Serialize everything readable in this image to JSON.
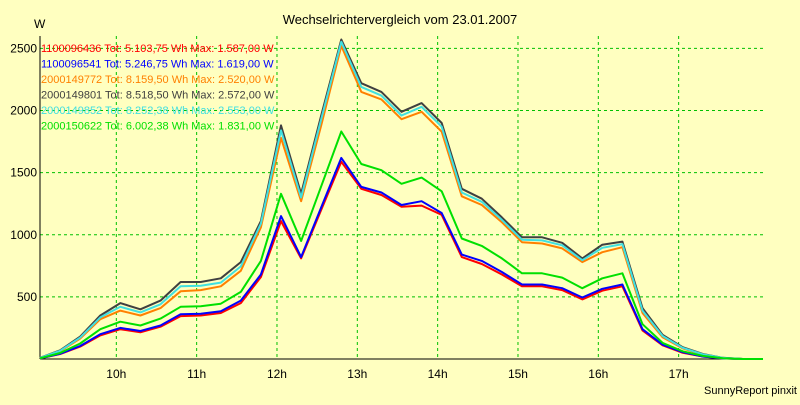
{
  "chart_data": {
    "type": "line",
    "title": "Wechselrichtervergleich vom 23.01.2007",
    "ylabel": "W",
    "xlabel": "",
    "footer": "SunnyReport pinxit",
    "ylim": [
      0,
      2600
    ],
    "xlim": [
      9.05,
      18.05
    ],
    "yticks": [
      500,
      1000,
      1500,
      2000,
      2500
    ],
    "xticks": [
      {
        "v": 10,
        "label": "10h"
      },
      {
        "v": 11,
        "label": "11h"
      },
      {
        "v": 12,
        "label": "12h"
      },
      {
        "v": 13,
        "label": "13h"
      },
      {
        "v": 14,
        "label": "14h"
      },
      {
        "v": 15,
        "label": "15h"
      },
      {
        "v": 16,
        "label": "16h"
      },
      {
        "v": 17,
        "label": "17h"
      }
    ],
    "grid": true,
    "legend_position": "top-left",
    "x": [
      9.05,
      9.3,
      9.55,
      9.8,
      10.05,
      10.3,
      10.55,
      10.8,
      11.05,
      11.3,
      11.55,
      11.8,
      12.05,
      12.3,
      12.55,
      12.8,
      13.05,
      13.3,
      13.55,
      13.8,
      14.05,
      14.3,
      14.55,
      14.8,
      15.05,
      15.3,
      15.55,
      15.8,
      16.05,
      16.3,
      16.55,
      16.8,
      17.05,
      17.3,
      17.55,
      17.8,
      18.05
    ],
    "series": [
      {
        "name": "1100096436",
        "label": "1100096436 Tot: 5.103,75 Wh Max: 1.587,00 W",
        "color": "#ff0000",
        "values": [
          5,
          40,
          100,
          190,
          240,
          215,
          260,
          345,
          350,
          370,
          450,
          660,
          1110,
          810,
          1200,
          1587,
          1370,
          1320,
          1225,
          1235,
          1160,
          820,
          765,
          680,
          585,
          585,
          555,
          480,
          550,
          585,
          230,
          110,
          50,
          20,
          5,
          0,
          0
        ]
      },
      {
        "name": "1100096541",
        "label": "1100096541 Tot: 5.246,75 Wh Max: 1.619,00 W",
        "color": "#0000ff",
        "values": [
          5,
          42,
          105,
          200,
          250,
          225,
          270,
          360,
          365,
          385,
          470,
          680,
          1150,
          820,
          1220,
          1619,
          1385,
          1340,
          1240,
          1270,
          1175,
          840,
          790,
          700,
          600,
          600,
          570,
          495,
          565,
          600,
          240,
          115,
          55,
          20,
          5,
          0,
          0
        ]
      },
      {
        "name": "2000149772",
        "label": "2000149772 Tot: 8.159,50 Wh Max: 2.520,00 W",
        "color": "#ff8000",
        "values": [
          8,
          62,
          165,
          320,
          390,
          350,
          410,
          545,
          555,
          585,
          710,
          1060,
          1780,
          1270,
          1880,
          2520,
          2150,
          2090,
          1930,
          1990,
          1830,
          1310,
          1240,
          1100,
          940,
          930,
          890,
          780,
          860,
          900,
          370,
          175,
          85,
          35,
          8,
          0,
          0
        ]
      },
      {
        "name": "2000149801",
        "label": "2000149801 Tot: 8.518,50 Wh Max: 2.572,00 W",
        "color": "#404040",
        "values": [
          10,
          70,
          180,
          350,
          450,
          400,
          470,
          620,
          620,
          650,
          780,
          1110,
          1880,
          1330,
          1960,
          2572,
          2220,
          2150,
          1990,
          2060,
          1900,
          1370,
          1290,
          1140,
          980,
          980,
          935,
          810,
          920,
          945,
          410,
          195,
          95,
          40,
          10,
          0,
          0
        ]
      },
      {
        "name": "2000149852",
        "label": "2000149852 Tot: 8.252,38 Wh Max: 2.553,00 W",
        "color": "#40e0e0",
        "values": [
          9,
          66,
          172,
          335,
          420,
          375,
          440,
          585,
          590,
          615,
          745,
          1090,
          1840,
          1300,
          1930,
          2553,
          2190,
          2120,
          1960,
          2030,
          1870,
          1340,
          1265,
          1120,
          960,
          955,
          915,
          795,
          895,
          925,
          390,
          185,
          90,
          38,
          9,
          0,
          0
        ]
      },
      {
        "name": "2000150622",
        "label": "2000150622 Tot: 6.002,38 Wh Max: 1.831,00 W",
        "color": "#00e000",
        "values": [
          6,
          48,
          125,
          240,
          300,
          270,
          325,
          420,
          425,
          445,
          540,
          790,
          1330,
          950,
          1390,
          1831,
          1570,
          1520,
          1410,
          1460,
          1350,
          970,
          910,
          810,
          690,
          690,
          655,
          570,
          650,
          690,
          280,
          130,
          62,
          25,
          6,
          0,
          0
        ]
      }
    ]
  }
}
